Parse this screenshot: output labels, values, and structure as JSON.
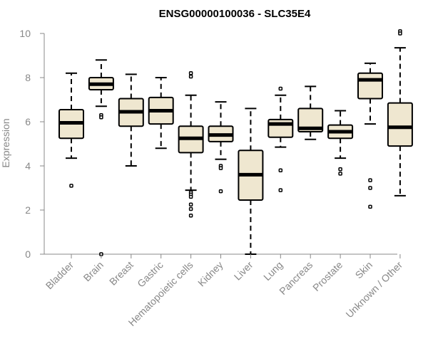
{
  "chart_data": {
    "type": "boxplot",
    "title": "ENSG00000100036 - SLC35E4",
    "xlabel": "",
    "ylabel": "Expression",
    "ylim": [
      0,
      10
    ],
    "yticks": [
      0,
      2,
      4,
      6,
      8,
      10
    ],
    "box_fill": "#efe7d0",
    "box_stroke": "#000000",
    "median_color": "#000000",
    "axis_color": "#888888",
    "categories": [
      "Bladder",
      "Brain",
      "Breast",
      "Gastric",
      "Hematopoietic cells",
      "Kidney",
      "Liver",
      "Lung",
      "Pancreas",
      "Prostate",
      "Skin",
      "Unknown / Other"
    ],
    "boxes": [
      {
        "category": "Bladder",
        "whisker_low": 4.35,
        "q1": 5.25,
        "median": 5.95,
        "q3": 6.55,
        "whisker_high": 8.2,
        "outliers": [
          3.1
        ]
      },
      {
        "category": "Brain",
        "whisker_low": 6.7,
        "q1": 7.45,
        "median": 7.7,
        "q3": 8.0,
        "whisker_high": 8.8,
        "outliers": [
          6.3,
          6.2,
          0.0
        ]
      },
      {
        "category": "Breast",
        "whisker_low": 4.0,
        "q1": 5.8,
        "median": 6.45,
        "q3": 7.05,
        "whisker_high": 8.15,
        "outliers": []
      },
      {
        "category": "Gastric",
        "whisker_low": 4.8,
        "q1": 5.9,
        "median": 6.5,
        "q3": 7.1,
        "whisker_high": 8.0,
        "outliers": []
      },
      {
        "category": "Hematopoietic cells",
        "whisker_low": 2.9,
        "q1": 4.6,
        "median": 5.25,
        "q3": 5.8,
        "whisker_high": 7.2,
        "outliers": [
          8.2,
          8.05,
          2.8,
          2.7,
          2.6,
          2.25,
          2.05,
          1.75
        ]
      },
      {
        "category": "Kidney",
        "whisker_low": 4.3,
        "q1": 5.1,
        "median": 5.4,
        "q3": 5.8,
        "whisker_high": 6.9,
        "outliers": [
          4.0,
          3.9,
          2.85
        ]
      },
      {
        "category": "Liver",
        "whisker_low": 0.0,
        "q1": 2.45,
        "median": 3.6,
        "q3": 4.7,
        "whisker_high": 6.6,
        "outliers": []
      },
      {
        "category": "Lung",
        "whisker_low": 4.85,
        "q1": 5.3,
        "median": 5.9,
        "q3": 6.1,
        "whisker_high": 7.2,
        "outliers": [
          7.5,
          3.8,
          2.9
        ]
      },
      {
        "category": "Pancreas",
        "whisker_low": 5.2,
        "q1": 5.55,
        "median": 5.7,
        "q3": 6.6,
        "whisker_high": 7.6,
        "outliers": []
      },
      {
        "category": "Prostate",
        "whisker_low": 4.35,
        "q1": 5.25,
        "median": 5.55,
        "q3": 5.85,
        "whisker_high": 6.5,
        "outliers": [
          3.85,
          3.65
        ]
      },
      {
        "category": "Skin",
        "whisker_low": 5.9,
        "q1": 7.05,
        "median": 7.9,
        "q3": 8.2,
        "whisker_high": 8.65,
        "outliers": [
          3.35,
          3.0,
          2.15
        ]
      },
      {
        "category": "Unknown / Other",
        "whisker_low": 2.65,
        "q1": 4.9,
        "median": 5.75,
        "q3": 6.85,
        "whisker_high": 9.35,
        "outliers": [
          10.1,
          10.0
        ]
      }
    ]
  }
}
